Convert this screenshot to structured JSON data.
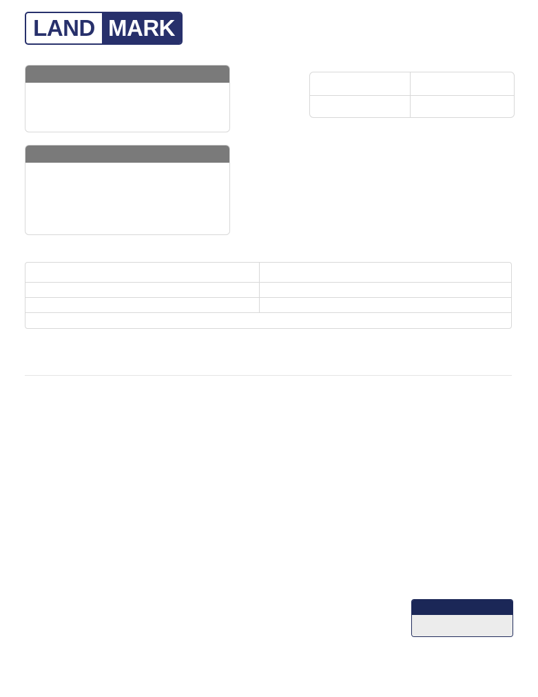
{
  "logo": {
    "part1": "LAND",
    "part2": "MARK",
    "brand_color": "#27306b"
  },
  "colors": {
    "section_header": "#7a7a7a",
    "total_header": "#1b2757",
    "total_body": "#ececec"
  },
  "panel1": {
    "title": "",
    "body": ""
  },
  "panel2": {
    "title": "",
    "body": ""
  },
  "info_table": {
    "cells": [
      "",
      "",
      "",
      ""
    ]
  },
  "detail_table": {
    "rows": [
      [
        "",
        ""
      ],
      [
        "",
        ""
      ],
      [
        "",
        ""
      ],
      [
        ""
      ]
    ]
  },
  "section1": {
    "title": ""
  },
  "section2": {
    "title": ""
  },
  "total": {
    "label": "",
    "value": ""
  }
}
